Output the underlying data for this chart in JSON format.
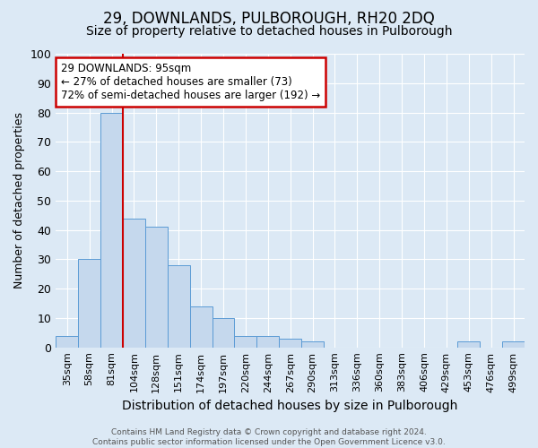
{
  "title": "29, DOWNLANDS, PULBOROUGH, RH20 2DQ",
  "subtitle": "Size of property relative to detached houses in Pulborough",
  "xlabel": "Distribution of detached houses by size in Pulborough",
  "ylabel": "Number of detached properties",
  "bin_labels": [
    "35sqm",
    "58sqm",
    "81sqm",
    "104sqm",
    "128sqm",
    "151sqm",
    "174sqm",
    "197sqm",
    "220sqm",
    "244sqm",
    "267sqm",
    "290sqm",
    "313sqm",
    "336sqm",
    "360sqm",
    "383sqm",
    "406sqm",
    "429sqm",
    "453sqm",
    "476sqm",
    "499sqm"
  ],
  "bar_heights": [
    4,
    30,
    80,
    44,
    41,
    28,
    14,
    10,
    4,
    4,
    3,
    2,
    0,
    0,
    0,
    0,
    0,
    0,
    2,
    0,
    2
  ],
  "bar_color": "#c5d8ed",
  "bar_edge_color": "#5b9bd5",
  "property_line_color": "#cc0000",
  "property_line_bin_index": 2.5,
  "annotation_text": "29 DOWNLANDS: 95sqm\n← 27% of detached houses are smaller (73)\n72% of semi-detached houses are larger (192) →",
  "annotation_box_color": "#ffffff",
  "annotation_box_edge_color": "#cc0000",
  "ylim": [
    0,
    100
  ],
  "yticks": [
    0,
    10,
    20,
    30,
    40,
    50,
    60,
    70,
    80,
    90,
    100
  ],
  "footnote": "Contains HM Land Registry data © Crown copyright and database right 2024.\nContains public sector information licensed under the Open Government Licence v3.0.",
  "background_color": "#dce9f5",
  "grid_color": "#ffffff",
  "title_fontsize": 12,
  "subtitle_fontsize": 10,
  "tick_fontsize": 8,
  "ylabel_fontsize": 9,
  "xlabel_fontsize": 10,
  "annotation_fontsize": 8.5
}
